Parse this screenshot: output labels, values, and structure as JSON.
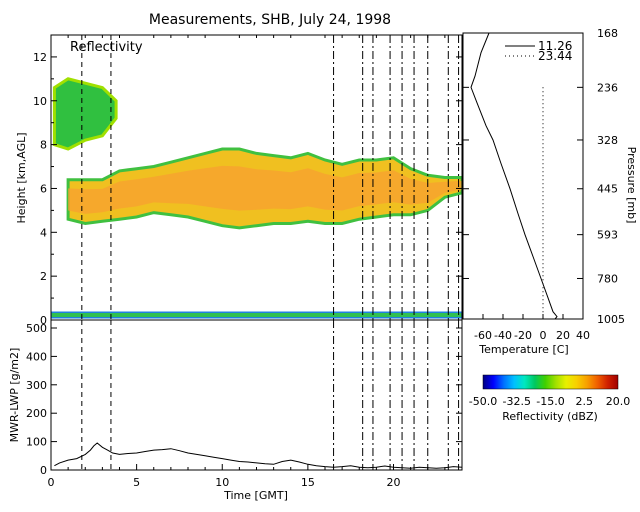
{
  "title": "Measurements, SHB, July 24, 1998",
  "colors": {
    "line": "#000000",
    "radar_scale": [
      "#000080",
      "#0000ff",
      "#0070ff",
      "#00c0ff",
      "#00e8c0",
      "#00c860",
      "#40d000",
      "#a0e000",
      "#e8f000",
      "#f8d000",
      "#f8a000",
      "#f06000",
      "#d02000",
      "#a00000"
    ]
  },
  "chart_data": [
    {
      "id": "reflectivity",
      "type": "heatmap",
      "panel_label": "Reflectivity",
      "xlabel": "",
      "ylabel": "Height [km,AGL]",
      "xlim": [
        0,
        24
      ],
      "ylim": [
        0,
        13
      ],
      "xticks": [
        0,
        5,
        10,
        15,
        20
      ],
      "yticks": [
        "0",
        "2",
        "4",
        "6",
        "8",
        "10",
        "12"
      ],
      "vlines_dashed": [
        1.8,
        3.5
      ],
      "vlines_dashdot": [
        16.5,
        18.2,
        18.8,
        19.8,
        20.5,
        21.2,
        22.0,
        23.2,
        23.8
      ],
      "cloud_layers": [
        {
          "name": "main",
          "x": [
            1.0,
            2,
            3,
            4,
            5,
            6,
            7,
            8,
            9,
            10,
            11,
            12,
            13,
            14,
            15,
            16,
            17,
            18,
            19,
            20,
            21,
            22,
            23,
            24
          ],
          "top": [
            6.4,
            6.4,
            6.4,
            6.8,
            6.9,
            7.0,
            7.2,
            7.4,
            7.6,
            7.8,
            7.8,
            7.6,
            7.5,
            7.4,
            7.6,
            7.3,
            7.1,
            7.3,
            7.3,
            7.4,
            6.9,
            6.6,
            6.5,
            6.5
          ],
          "base": [
            4.6,
            4.4,
            4.5,
            4.6,
            4.7,
            4.9,
            4.8,
            4.7,
            4.5,
            4.3,
            4.2,
            4.3,
            4.4,
            4.4,
            4.5,
            4.4,
            4.4,
            4.6,
            4.7,
            4.8,
            4.8,
            5.0,
            5.6,
            5.8
          ]
        },
        {
          "name": "upper",
          "x": [
            0.2,
            1,
            2,
            3,
            3.8
          ],
          "top": [
            10.6,
            11.0,
            10.8,
            10.6,
            10.0
          ],
          "base": [
            8.0,
            7.8,
            8.2,
            8.4,
            9.2
          ]
        },
        {
          "name": "surface",
          "x": [
            0,
            24
          ],
          "top": [
            0.35,
            0.35
          ],
          "base": [
            0.1,
            0.1
          ]
        }
      ]
    },
    {
      "id": "lwp",
      "type": "line",
      "xlabel": "Time [GMT]",
      "ylabel": "MWR-LWP [g/m2]",
      "xlim": [
        0,
        24
      ],
      "ylim": [
        0,
        500
      ],
      "xticks": [
        "0",
        "5",
        "10",
        "15",
        "20"
      ],
      "yticks": [
        "0",
        "100",
        "200",
        "300",
        "400",
        "500"
      ],
      "x": [
        0.2,
        0.5,
        1.0,
        1.5,
        2.0,
        2.3,
        2.5,
        2.7,
        3.0,
        3.3,
        3.6,
        4.0,
        4.5,
        5.0,
        5.5,
        6.0,
        6.5,
        7.0,
        7.5,
        8.0,
        8.5,
        9.0,
        9.5,
        10.0,
        10.5,
        11.0,
        11.5,
        12.0,
        12.5,
        13.0,
        13.5,
        14.0,
        14.5,
        15.0,
        15.5,
        16.0,
        16.5,
        17.0,
        17.5,
        18.0,
        18.5,
        19.0,
        19.5,
        20.0,
        20.5,
        21.0,
        21.5,
        22.0,
        22.5,
        23.0,
        23.5,
        24.0
      ],
      "values": [
        15,
        25,
        35,
        40,
        55,
        70,
        85,
        95,
        80,
        70,
        60,
        55,
        58,
        60,
        65,
        70,
        72,
        75,
        68,
        60,
        55,
        50,
        45,
        40,
        35,
        30,
        28,
        25,
        22,
        20,
        30,
        35,
        28,
        20,
        15,
        12,
        10,
        12,
        15,
        10,
        8,
        10,
        14,
        10,
        8,
        6,
        10,
        8,
        6,
        8,
        12,
        10
      ],
      "vlines_dashed": [
        1.8,
        3.5
      ],
      "vlines_dashdot": [
        16.5,
        18.2,
        18.8,
        19.8,
        20.5,
        21.2,
        22.0,
        23.2,
        23.8
      ]
    },
    {
      "id": "temperature",
      "type": "line",
      "xlabel": "Temperature [C]",
      "ylabel": "Pressure [mb]",
      "xlim": [
        -80,
        40
      ],
      "pressure_range": [
        168,
        1005
      ],
      "xticks": [
        "-60",
        "-40",
        "-20",
        "0",
        "20",
        "40"
      ],
      "yticks": [
        "168",
        "236",
        "328",
        "445",
        "593",
        "780",
        "1005"
      ],
      "series": [
        {
          "name": "11.26",
          "style": "solid",
          "pressure": [
            168,
            190,
            220,
            236,
            260,
            300,
            328,
            380,
            445,
            520,
            593,
            680,
            780,
            880,
            960,
            990,
            1005
          ],
          "values": [
            -54,
            -62,
            -68,
            -72,
            -66,
            -57,
            -50,
            -42,
            -33,
            -25,
            -18,
            -10,
            -2,
            5,
            10,
            14,
            12
          ]
        },
        {
          "name": "23.44",
          "style": "dotted",
          "pressure": [
            236,
            1005
          ],
          "values": [
            0,
            0
          ]
        }
      ]
    },
    {
      "id": "colorbar",
      "type": "heatmap",
      "xlabel": "Reflectivity (dBZ)",
      "range": [
        -50,
        20
      ],
      "ticks": [
        "-50.0",
        "-32.5",
        "-15.0",
        "2.5",
        "20.0"
      ]
    }
  ]
}
